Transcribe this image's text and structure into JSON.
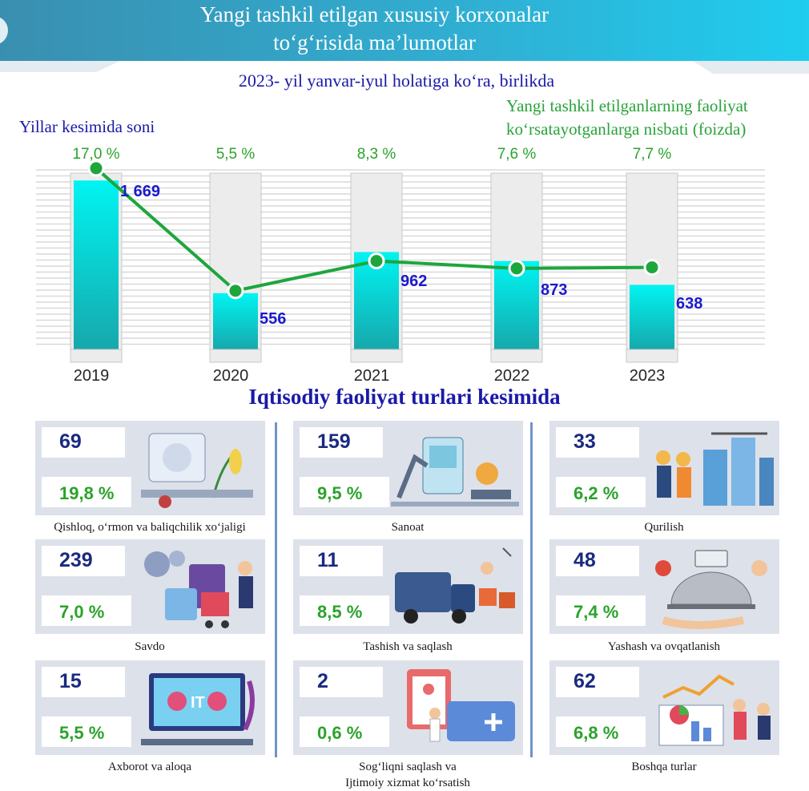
{
  "header": {
    "title_line1": "Yangi tashkil etilgan xususiy korxonalar",
    "title_line2": "to‘g‘risida ma’lumotlar",
    "subtitle": "2023- yil yanvar-iyul holatiga ko‘ra, birlikda"
  },
  "left_label": "Yillar kesimida soni",
  "right_label_line1": "Yangi tashkil etilganlarning faoliyat",
  "right_label_line2": "ko‘rsatayotganlarga nisbati (foizda)",
  "colors": {
    "bar": "#19d3d8",
    "line": "#1ea63c",
    "count": "#1a1acd",
    "pct": "#2aa32a",
    "title": "#1a1aa8"
  },
  "chart_data": {
    "type": "bar",
    "categories": [
      "2019",
      "2020",
      "2021",
      "2022",
      "2023"
    ],
    "series": [
      {
        "values": [
          1669,
          556,
          962,
          873,
          638
        ],
        "value_labels": [
          "1 669",
          "556",
          "962",
          "873",
          "638"
        ]
      },
      {
        "values": [
          17.0,
          5.5,
          8.3,
          7.6,
          7.7
        ],
        "value_labels": [
          "17,0 %",
          "5,5 %",
          "8,3 %",
          "7,6 %",
          "7,7 %"
        ]
      }
    ],
    "ylim": [
      0,
      1900
    ],
    "grid": true
  },
  "section_title": "Iqtisodiy faoliyat turlari kesimida",
  "activities": [
    {
      "count": "69",
      "pct": "19,8 %",
      "label": "Qishloq, o‘rmon va baliqchilik xo‘jaligi",
      "icon": "agriculture-illustration"
    },
    {
      "count": "159",
      "pct": "9,5 %",
      "label": "Sanoat",
      "icon": "industry-illustration"
    },
    {
      "count": "33",
      "pct": "6,2 %",
      "label": "Qurilish",
      "icon": "construction-illustration"
    },
    {
      "count": "239",
      "pct": "7,0 %",
      "label": "Savdo",
      "icon": "trade-illustration"
    },
    {
      "count": "11",
      "pct": "8,5 %",
      "label": "Tashish va saqlash",
      "icon": "transport-illustration"
    },
    {
      "count": "48",
      "pct": "7,4 %",
      "label": "Yashash va ovqatlanish",
      "icon": "hospitality-illustration"
    },
    {
      "count": "15",
      "pct": "5,5 %",
      "label": "Axborot va aloqa",
      "icon": "it-illustration"
    },
    {
      "count": "2",
      "pct": "0,6 %",
      "label": "Sog‘liqni saqlash va",
      "label2": "Ijtimoiy xizmat ko‘rsatish",
      "icon": "healthcare-illustration"
    },
    {
      "count": "62",
      "pct": "6,8 %",
      "label": "Boshqa turlar",
      "icon": "other-illustration"
    }
  ]
}
